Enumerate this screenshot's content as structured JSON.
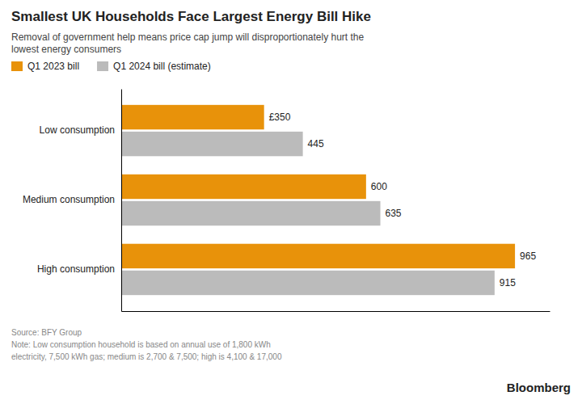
{
  "chart_data": {
    "type": "bar",
    "orientation": "horizontal",
    "title": "Smallest UK Households Face Largest Energy Bill Hike",
    "subtitle": "Removal of government help means price cap jump will disproportionately hurt the\nlowest energy consumers",
    "categories": [
      "Low consumption",
      "Medium consumption",
      "High consumption"
    ],
    "series": [
      {
        "name": "Q1 2023 bill",
        "color": "#E8920A",
        "values": [
          350,
          600,
          965
        ],
        "value_labels": [
          "£350",
          "600",
          "965"
        ]
      },
      {
        "name": "Q1 2024 bill (estimate)",
        "color": "#BBBBBB",
        "values": [
          445,
          635,
          915
        ],
        "value_labels": [
          "445",
          "635",
          "915"
        ]
      }
    ],
    "xlim": [
      0,
      1050
    ],
    "data_labels": true,
    "tick_labels": "y",
    "grid": false,
    "legend": "upper left",
    "annotations": [
      "Source: BFY Group\nNote: Low consumption household is based on annual use of 1,800 kWh\nelectricity, 7,500 kWh gas; medium is 2,700 & 7,500; high is 4,100 & 17,000",
      "Bloomberg"
    ]
  }
}
